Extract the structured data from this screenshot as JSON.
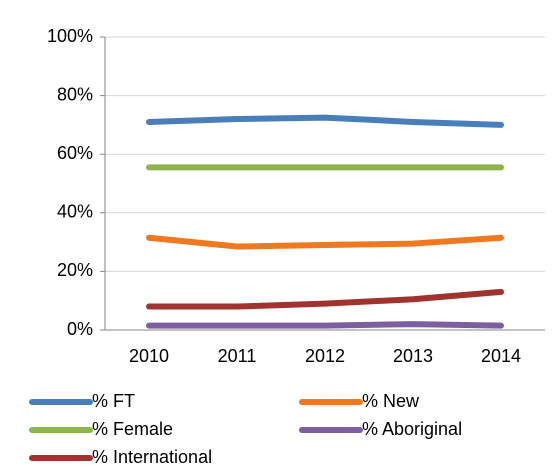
{
  "chart_data": {
    "type": "line",
    "categories": [
      "2010",
      "2011",
      "2012",
      "2013",
      "2014"
    ],
    "series": [
      {
        "name": "% FT",
        "color": "#4a7ebb",
        "values": [
          71,
          72,
          72.5,
          71,
          70
        ]
      },
      {
        "name": "% New",
        "color": "#f0781e",
        "values": [
          31.5,
          28.5,
          29,
          29.5,
          31.5
        ]
      },
      {
        "name": "% Female",
        "color": "#8db54c",
        "values": [
          55.5,
          55.5,
          55.5,
          55.5,
          55.5
        ]
      },
      {
        "name": "% Aboriginal",
        "color": "#7d5fa0",
        "values": [
          1.5,
          1.5,
          1.5,
          2,
          1.5
        ]
      },
      {
        "name": "% International",
        "color": "#a0332f",
        "values": [
          8,
          8,
          9,
          10.5,
          13
        ]
      }
    ],
    "ylim": [
      0,
      100
    ],
    "yticks": [
      {
        "value": 0,
        "label": "0%"
      },
      {
        "value": 20,
        "label": "20%"
      },
      {
        "value": 40,
        "label": "40%"
      },
      {
        "value": 60,
        "label": "60%"
      },
      {
        "value": 80,
        "label": "80%"
      },
      {
        "value": 100,
        "label": "100%"
      }
    ],
    "grid": true
  }
}
